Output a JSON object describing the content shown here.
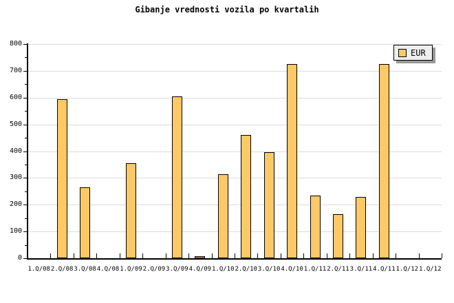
{
  "title": "Gibanje vrednosti vozila po kvartalih",
  "legend": {
    "label": "EUR"
  },
  "colors": {
    "bar_fill": "#FDC966",
    "bar_border": "#000000",
    "grid": "#DCDCDC",
    "axis": "#000000",
    "legend_bg": "#EEEEEE",
    "legend_shadow": "#999999",
    "background": "#FFFFFF"
  },
  "chart_data": {
    "type": "bar",
    "title": "Gibanje vrednosti vozila po kvartalih",
    "categories": [
      "1.Q/08",
      "2.Q/08",
      "3.Q/08",
      "4.Q/08",
      "1.Q/09",
      "2.Q/09",
      "3.Q/09",
      "4.Q/09",
      "1.Q/10",
      "2.Q/10",
      "3.Q/10",
      "4.Q/10",
      "1.Q/11",
      "2.Q/11",
      "3.Q/11",
      "4.Q/11",
      "1.Q/12",
      "1.Q/12"
    ],
    "values": [
      0,
      595,
      265,
      0,
      355,
      0,
      605,
      8,
      315,
      460,
      395,
      725,
      235,
      165,
      230,
      725,
      0,
      0
    ],
    "series": [
      {
        "name": "EUR",
        "values": [
          0,
          595,
          265,
          0,
          355,
          0,
          605,
          8,
          315,
          460,
          395,
          725,
          235,
          165,
          230,
          725,
          0,
          0
        ]
      }
    ],
    "xlabel": "",
    "ylabel": "",
    "ylim": [
      0,
      800
    ],
    "ytick_step": 100,
    "ytick_minor_step": 50,
    "yticks": [
      "0",
      "100",
      "200",
      "300",
      "400",
      "500",
      "600",
      "700",
      "800"
    ],
    "grid": true,
    "legend_position": "top-right"
  }
}
